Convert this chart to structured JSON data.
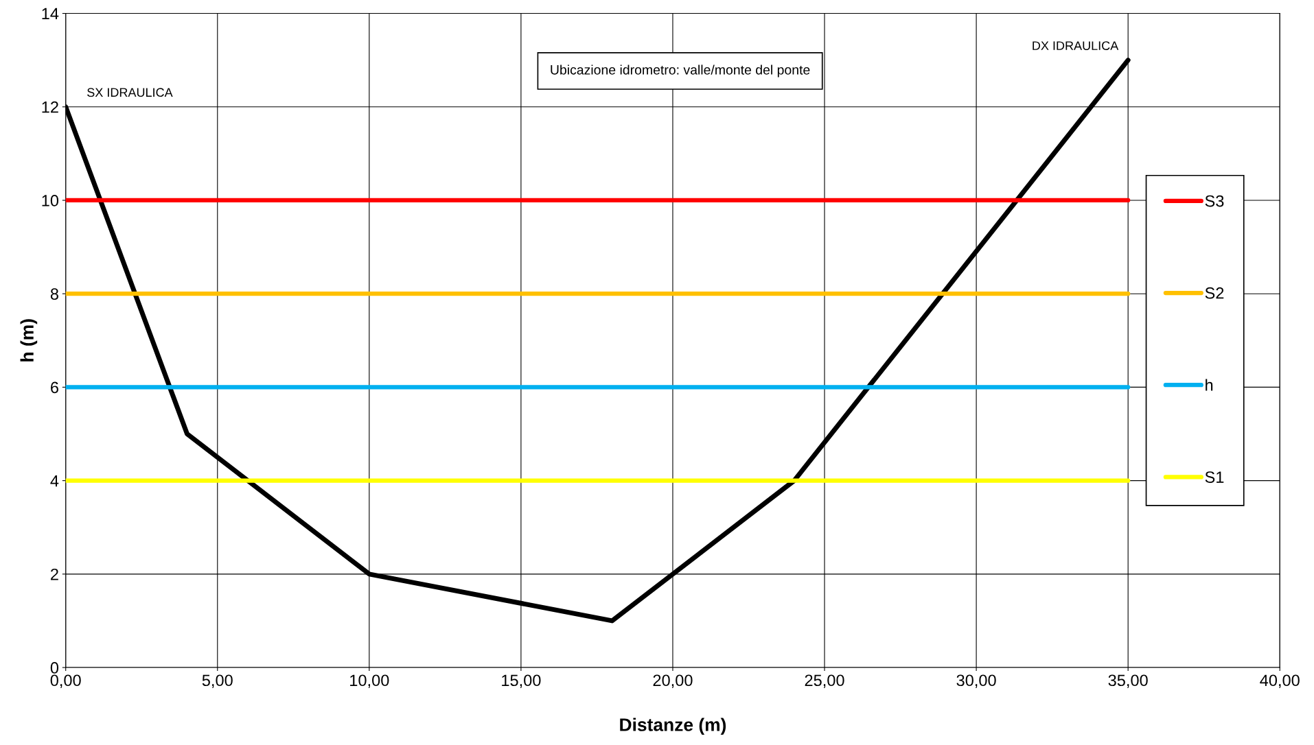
{
  "chart_data": {
    "type": "line",
    "xlabel": "Distanze (m)",
    "ylabel": "h (m)",
    "series": [
      {
        "color": "#000000",
        "x": [
          0,
          4,
          10,
          18,
          24,
          35
        ],
        "values": [
          12,
          5,
          2,
          1,
          4,
          13
        ]
      },
      {
        "name": "S3",
        "color": "#ff0000",
        "x": [
          0,
          35
        ],
        "values": [
          10,
          10
        ]
      },
      {
        "name": "S2",
        "color": "#ffc000",
        "x": [
          0,
          35
        ],
        "values": [
          8,
          8
        ]
      },
      {
        "name": "h",
        "color": "#00b0f0",
        "x": [
          0,
          35
        ],
        "values": [
          6,
          6
        ]
      },
      {
        "name": "S1",
        "color": "#ffff00",
        "x": [
          0,
          35
        ],
        "values": [
          4,
          4
        ]
      }
    ],
    "xlim": [
      0,
      40
    ],
    "ylim": [
      0,
      14
    ],
    "xticks": [
      {
        "value": 0,
        "label": "0,00"
      },
      {
        "value": 5,
        "label": "5,00"
      },
      {
        "value": 10,
        "label": "10,00"
      },
      {
        "value": 15,
        "label": "15,00"
      },
      {
        "value": 20,
        "label": "20,00"
      },
      {
        "value": 25,
        "label": "25,00"
      },
      {
        "value": 30,
        "label": "30,00"
      },
      {
        "value": 35,
        "label": "35,00"
      },
      {
        "value": 40,
        "label": "40,00"
      }
    ],
    "yticks": [
      0,
      2,
      4,
      6,
      8,
      10,
      12,
      14
    ],
    "annotations": [
      {
        "text": "SX IDRAULICA",
        "x": 0,
        "y": 12
      },
      {
        "text": "DX IDRAULICA",
        "x": 35,
        "y": 13
      },
      "Ubicazione idrometro: valle/monte del ponte"
    ],
    "grid": true,
    "legend": "right",
    "marker": "none",
    "line_style": "solid"
  }
}
